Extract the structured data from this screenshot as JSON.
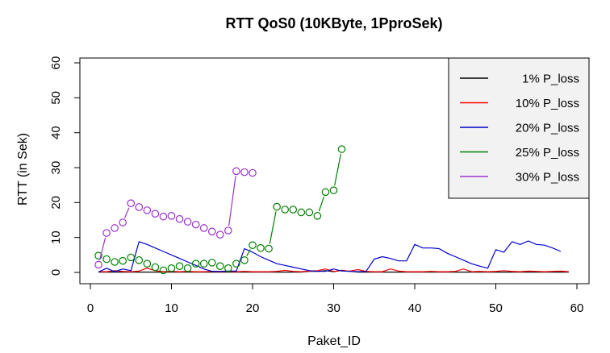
{
  "chart_data": {
    "type": "line",
    "title": "RTT QoS0 (10KByte, 1PproSek)",
    "xlabel": "Paket_ID",
    "ylabel": "RTT (in Sek)",
    "xlim": [
      0,
      60
    ],
    "ylim": [
      0,
      60
    ],
    "x_ticks": [
      0,
      10,
      20,
      30,
      40,
      50,
      60
    ],
    "y_ticks": [
      0,
      10,
      20,
      30,
      40,
      50,
      60
    ],
    "grid": false,
    "legend_position": "top-right",
    "series": [
      {
        "name": "1% P_loss",
        "color": "#000000",
        "markers": false,
        "x": [
          1,
          2,
          3,
          4,
          5,
          6,
          7,
          8,
          9,
          10,
          11,
          12,
          13,
          14,
          15,
          16,
          17,
          18,
          19,
          20,
          21,
          22,
          23,
          24,
          25,
          26,
          27,
          28,
          29,
          30,
          31,
          32,
          33,
          34,
          35,
          36,
          37,
          38,
          39,
          40,
          41,
          42,
          43,
          44,
          45,
          46,
          47,
          48,
          49,
          50,
          51,
          52,
          53,
          54,
          55,
          56,
          57,
          58,
          59
        ],
        "y": [
          0.1,
          0.1,
          0.1,
          0.1,
          0.1,
          0.1,
          0.1,
          0.1,
          0.1,
          0.1,
          0.1,
          0.1,
          0.1,
          0.1,
          0.1,
          0.1,
          0.1,
          0.1,
          0.1,
          0.1,
          0.1,
          0.1,
          0.1,
          0.1,
          0.1,
          0.1,
          0.3,
          0.3,
          0.5,
          0.2,
          0.6,
          0.3,
          0.1,
          0.1,
          0.1,
          0.1,
          0.1,
          0.1,
          0.1,
          0.1,
          0.1,
          0.1,
          0.1,
          0.1,
          0.1,
          0.1,
          0.1,
          0.1,
          0.1,
          0.1,
          0.1,
          0.1,
          0.1,
          0.1,
          0.1,
          0.1,
          0.1,
          0.1,
          0.1
        ]
      },
      {
        "name": "10% P_loss",
        "color": "#ff0000",
        "markers": false,
        "x": [
          1,
          2,
          3,
          4,
          5,
          6,
          7,
          8,
          9,
          10,
          11,
          12,
          13,
          14,
          15,
          16,
          17,
          18,
          19,
          20,
          21,
          22,
          23,
          24,
          25,
          26,
          27,
          28,
          29,
          30,
          31,
          32,
          33,
          34,
          35,
          36,
          37,
          38,
          39,
          40,
          41,
          42,
          43,
          44,
          45,
          46,
          47,
          48,
          49,
          50,
          51,
          52,
          53,
          54,
          55,
          56,
          57,
          58,
          59
        ],
        "y": [
          0.2,
          0.2,
          0.5,
          0.3,
          0.2,
          0.4,
          1.2,
          0.5,
          0.2,
          0.3,
          0.2,
          0.3,
          0.2,
          0.2,
          0.3,
          0.2,
          0.3,
          0.2,
          0.3,
          0.2,
          0.2,
          0.2,
          0.3,
          0.6,
          0.3,
          0.2,
          0.4,
          0.5,
          1.0,
          0.3,
          0.5,
          0.4,
          0.8,
          0.3,
          0.2,
          0.2,
          1.0,
          0.4,
          0.2,
          0.2,
          0.2,
          0.3,
          0.2,
          0.2,
          0.3,
          1.0,
          0.2,
          0.3,
          0.2,
          0.3,
          0.5,
          0.3,
          0.2,
          0.4,
          0.3,
          0.2,
          0.3,
          0.4,
          0.2
        ]
      },
      {
        "name": "20% P_loss",
        "color": "#0000cc",
        "markers": false,
        "x": [
          1,
          2,
          3,
          4,
          5,
          6,
          7,
          8,
          9,
          10,
          11,
          12,
          13,
          14,
          15,
          16,
          17,
          18,
          19,
          20,
          21,
          22,
          23,
          24,
          25,
          26,
          27,
          28,
          29,
          30,
          31,
          32,
          33,
          34,
          35,
          36,
          37,
          38,
          39,
          40,
          41,
          42,
          43,
          44,
          45,
          46,
          47,
          48,
          49,
          50,
          51,
          52,
          53,
          54,
          55,
          56,
          57,
          58
        ],
        "y": [
          0.1,
          1.2,
          0.2,
          1.0,
          0.5,
          8.8,
          8.0,
          7.0,
          6.0,
          5.0,
          4.0,
          3.0,
          2.0,
          1.0,
          0.3,
          0.3,
          0.4,
          0.4,
          6.8,
          5.8,
          4.5,
          3.5,
          2.5,
          2.0,
          1.5,
          1.0,
          0.5,
          0.3,
          0.3,
          1.0,
          0.4,
          0.3,
          0.2,
          0.3,
          3.8,
          4.5,
          4.0,
          3.3,
          3.3,
          8.0,
          7.0,
          7.0,
          6.8,
          5.5,
          4.5,
          3.5,
          2.5,
          1.8,
          1.2,
          6.5,
          5.8,
          8.8,
          8.0,
          9.0,
          8.0,
          7.8,
          7.0,
          6.0
        ]
      },
      {
        "name": "25% P_loss",
        "color": "#008000",
        "markers": true,
        "x": [
          1,
          2,
          3,
          4,
          5,
          6,
          7,
          8,
          9,
          10,
          11,
          12,
          13,
          14,
          15,
          16,
          17,
          18,
          19,
          20,
          21,
          22,
          23,
          24,
          25,
          26,
          27,
          28,
          29,
          30,
          31
        ],
        "y": [
          4.8,
          3.8,
          3.0,
          3.3,
          4.3,
          3.5,
          2.5,
          1.5,
          0.6,
          1.2,
          1.8,
          1.2,
          2.5,
          2.5,
          2.8,
          1.8,
          1.2,
          2.5,
          3.5,
          7.8,
          7.0,
          6.8,
          18.8,
          18.0,
          18.0,
          17.2,
          17.2,
          16.2,
          23.0,
          23.5,
          35.3
        ]
      },
      {
        "name": "30% P_loss",
        "color": "#9932cc",
        "markers": true,
        "x": [
          1,
          2,
          3,
          4,
          5,
          6,
          7,
          8,
          9,
          10,
          11,
          12,
          13,
          14,
          15,
          16,
          17,
          18,
          19,
          20
        ],
        "y": [
          2.2,
          11.3,
          12.7,
          14.3,
          19.8,
          18.7,
          17.8,
          16.8,
          16.0,
          16.2,
          15.3,
          14.5,
          13.7,
          12.7,
          11.7,
          10.8,
          12.0,
          29.0,
          28.7,
          28.5
        ]
      }
    ]
  }
}
